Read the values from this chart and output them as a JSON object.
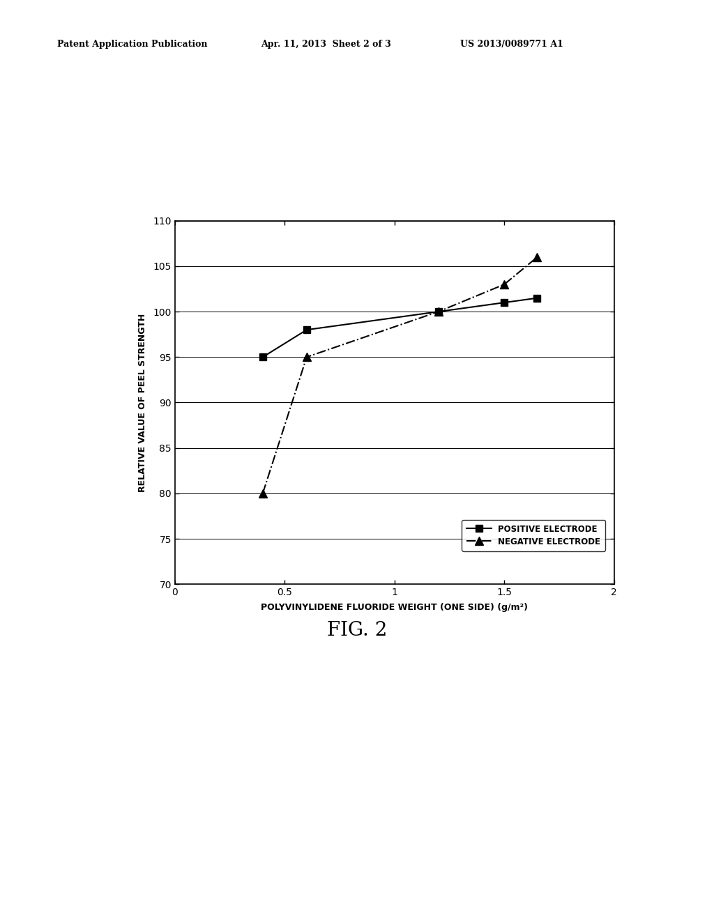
{
  "positive_x": [
    0.4,
    0.6,
    1.2,
    1.5,
    1.65
  ],
  "positive_y": [
    95,
    98,
    100,
    101,
    101.5
  ],
  "negative_x": [
    0.4,
    0.6,
    1.2,
    1.5,
    1.65
  ],
  "negative_y": [
    80,
    95,
    100,
    103,
    106
  ],
  "xlim": [
    0,
    2
  ],
  "ylim": [
    70,
    110
  ],
  "xticks": [
    0,
    0.5,
    1,
    1.5,
    2
  ],
  "yticks": [
    70,
    75,
    80,
    85,
    90,
    95,
    100,
    105,
    110
  ],
  "xlabel": "POLYVINYLIDENE FLUORIDE WEIGHT (ONE SIDE) (g/m²)",
  "ylabel": "RELATIVE VALUE OF PEEL STRENGTH",
  "legend_positive": "POSITIVE ELECTRODE",
  "legend_negative": "NEGATIVE ELECTRODE",
  "fig_caption": "FIG. 2",
  "header_left": "Patent Application Publication",
  "header_mid": "Apr. 11, 2013  Sheet 2 of 3",
  "header_right": "US 2013/0089771 A1",
  "background_color": "#ffffff",
  "line_color": "#000000",
  "grid_color": "#000000"
}
